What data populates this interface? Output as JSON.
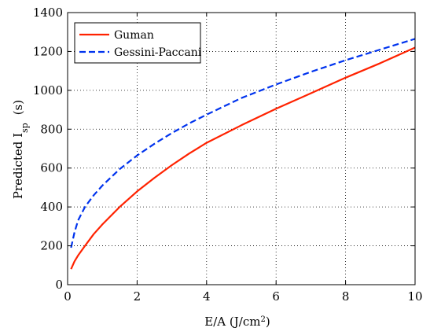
{
  "chart_data": {
    "type": "line",
    "xlabel": {
      "main": "E/A (J/cm",
      "sup": "2",
      "close": ")"
    },
    "ylabel": {
      "main": "Predicted I",
      "sub": "sp",
      "unit": "(s)"
    },
    "xlim": [
      0,
      10
    ],
    "ylim": [
      0,
      1400
    ],
    "x_ticks": [
      "0",
      "2",
      "4",
      "6",
      "8",
      "10"
    ],
    "y_ticks": [
      "0",
      "200",
      "400",
      "600",
      "800",
      "1000",
      "1200",
      "1400"
    ],
    "grid": true,
    "legend_position": "top-left",
    "series": [
      {
        "name": "Guman",
        "color": "#ff2200",
        "style": "solid",
        "x": [
          0.1,
          0.2,
          0.3,
          0.5,
          0.75,
          1,
          1.5,
          2,
          2.5,
          3,
          3.5,
          4,
          5,
          6,
          7,
          8,
          9,
          10
        ],
        "y": [
          80,
          120,
          150,
          200,
          260,
          310,
          400,
          480,
          550,
          615,
          675,
          730,
          820,
          905,
          985,
          1065,
          1140,
          1220
        ]
      },
      {
        "name": "Gessini-Paccani",
        "color": "#0033ee",
        "style": "dashed",
        "x": [
          0.1,
          0.2,
          0.3,
          0.5,
          0.75,
          1,
          1.5,
          2,
          2.5,
          3,
          3.5,
          4,
          5,
          6,
          7,
          8,
          9,
          10
        ],
        "y": [
          190,
          270,
          330,
          400,
          460,
          510,
          595,
          665,
          725,
          780,
          830,
          875,
          960,
          1030,
          1095,
          1155,
          1210,
          1265
        ]
      }
    ]
  }
}
